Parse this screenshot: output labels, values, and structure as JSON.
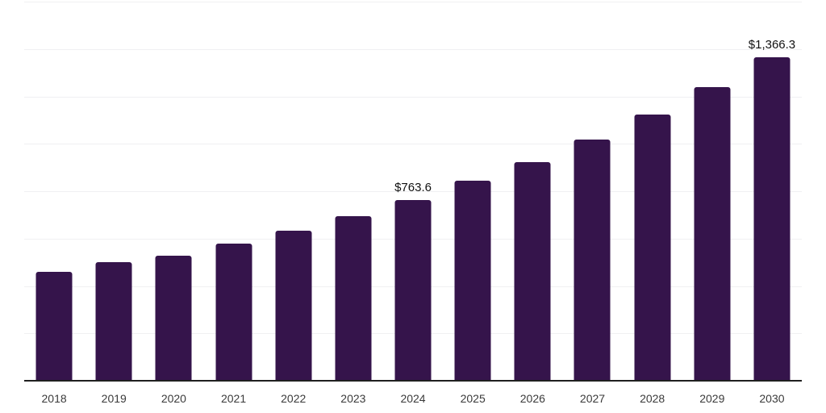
{
  "chart_data": {
    "type": "bar",
    "title": "",
    "xlabel": "",
    "ylabel": "",
    "categories": [
      "2018",
      "2019",
      "2020",
      "2021",
      "2022",
      "2023",
      "2024",
      "2025",
      "2026",
      "2027",
      "2028",
      "2029",
      "2030"
    ],
    "values": [
      459,
      501,
      527,
      580,
      632,
      696,
      763.6,
      843,
      924,
      1017,
      1122,
      1240,
      1366.3
    ],
    "value_labels": [
      "",
      "",
      "",
      "",
      "",
      "",
      "$763.6",
      "",
      "",
      "",
      "",
      "",
      "$1,366.3"
    ],
    "ylim": [
      0,
      1600
    ],
    "gridline_interval": 200,
    "grid": true,
    "legend_position": "none",
    "colors": {
      "bar": "#35144b",
      "axis": "#1f1f1f",
      "grid": "#f0f0f2",
      "tick_label": "#3a3a3a",
      "value_label": "#111111",
      "background": "#ffffff"
    }
  }
}
